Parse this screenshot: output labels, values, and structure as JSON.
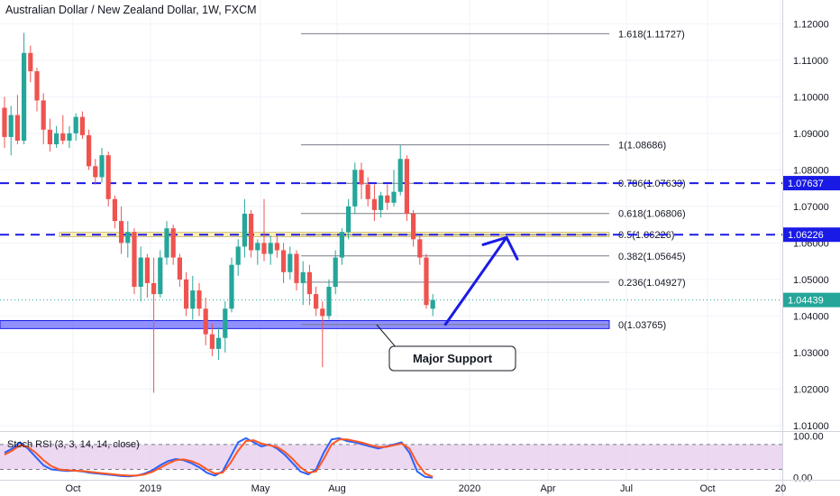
{
  "header": {
    "title": "Australian Dollar / New Zealand Dollar, 1W, FXCM"
  },
  "colors": {
    "up": "#26a69a",
    "down": "#ef5350",
    "fib_line": "#787b86",
    "level_line": "#1a1ae6",
    "support_fill": "#6b6bff",
    "zone_fill": "#ffeaa0",
    "current_price": "#26a69a",
    "stoch_k": "#2962ff",
    "stoch_d": "#ff5722",
    "stoch_band": "#e1bee7",
    "arrow": "#1a1ae6"
  },
  "chart_data": [
    {
      "type": "candlestick",
      "title": "Australian Dollar / New Zealand Dollar, 1W, FXCM",
      "price_axis": {
        "ticks": [
          "1.12000",
          "1.11000",
          "1.10000",
          "1.09000",
          "1.08000",
          "1.07000",
          "1.06000",
          "1.05000",
          "1.04000",
          "1.03000",
          "1.02000",
          "1.01000"
        ],
        "range": [
          1.0085,
          1.1265
        ]
      },
      "time_axis": {
        "ticks": [
          "Oct",
          "2019",
          "May",
          "Aug",
          "2020",
          "Apr",
          "Jul",
          "Oct",
          "20"
        ]
      },
      "candles": [
        {
          "o": 1.097,
          "h": 1.1,
          "l": 1.086,
          "c": 1.089
        },
        {
          "o": 1.089,
          "h": 1.0975,
          "l": 1.084,
          "c": 1.095
        },
        {
          "o": 1.095,
          "h": 1.1005,
          "l": 1.087,
          "c": 1.088
        },
        {
          "o": 1.088,
          "h": 1.1175,
          "l": 1.087,
          "c": 1.112
        },
        {
          "o": 1.112,
          "h": 1.114,
          "l": 1.104,
          "c": 1.107
        },
        {
          "o": 1.107,
          "h": 1.108,
          "l": 1.096,
          "c": 1.099
        },
        {
          "o": 1.099,
          "h": 1.101,
          "l": 1.087,
          "c": 1.091
        },
        {
          "o": 1.091,
          "h": 1.094,
          "l": 1.085,
          "c": 1.087
        },
        {
          "o": 1.087,
          "h": 1.092,
          "l": 1.086,
          "c": 1.09
        },
        {
          "o": 1.09,
          "h": 1.095,
          "l": 1.087,
          "c": 1.088
        },
        {
          "o": 1.088,
          "h": 1.092,
          "l": 1.086,
          "c": 1.09
        },
        {
          "o": 1.09,
          "h": 1.0955,
          "l": 1.088,
          "c": 1.0945
        },
        {
          "o": 1.0945,
          "h": 1.096,
          "l": 1.0885,
          "c": 1.0895
        },
        {
          "o": 1.0895,
          "h": 1.091,
          "l": 1.08,
          "c": 1.081
        },
        {
          "o": 1.081,
          "h": 1.083,
          "l": 1.076,
          "c": 1.078
        },
        {
          "o": 1.078,
          "h": 1.086,
          "l": 1.0765,
          "c": 1.084
        },
        {
          "o": 1.084,
          "h": 1.085,
          "l": 1.07,
          "c": 1.072
        },
        {
          "o": 1.072,
          "h": 1.073,
          "l": 1.064,
          "c": 1.066
        },
        {
          "o": 1.066,
          "h": 1.07,
          "l": 1.057,
          "c": 1.06
        },
        {
          "o": 1.06,
          "h": 1.066,
          "l": 1.056,
          "c": 1.063
        },
        {
          "o": 1.063,
          "h": 1.064,
          "l": 1.046,
          "c": 1.048
        },
        {
          "o": 1.048,
          "h": 1.059,
          "l": 1.044,
          "c": 1.056
        },
        {
          "o": 1.056,
          "h": 1.057,
          "l": 1.045,
          "c": 1.049
        },
        {
          "o": 1.049,
          "h": 1.056,
          "l": 1.019,
          "c": 1.046
        },
        {
          "o": 1.046,
          "h": 1.058,
          "l": 1.045,
          "c": 1.056
        },
        {
          "o": 1.056,
          "h": 1.066,
          "l": 1.054,
          "c": 1.064
        },
        {
          "o": 1.064,
          "h": 1.065,
          "l": 1.054,
          "c": 1.056
        },
        {
          "o": 1.056,
          "h": 1.057,
          "l": 1.048,
          "c": 1.05
        },
        {
          "o": 1.05,
          "h": 1.052,
          "l": 1.04,
          "c": 1.042
        },
        {
          "o": 1.042,
          "h": 1.051,
          "l": 1.039,
          "c": 1.047
        },
        {
          "o": 1.047,
          "h": 1.049,
          "l": 1.04,
          "c": 1.042
        },
        {
          "o": 1.042,
          "h": 1.045,
          "l": 1.032,
          "c": 1.035
        },
        {
          "o": 1.035,
          "h": 1.038,
          "l": 1.029,
          "c": 1.031
        },
        {
          "o": 1.031,
          "h": 1.037,
          "l": 1.028,
          "c": 1.034
        },
        {
          "o": 1.034,
          "h": 1.044,
          "l": 1.03,
          "c": 1.042
        },
        {
          "o": 1.042,
          "h": 1.056,
          "l": 1.041,
          "c": 1.054
        },
        {
          "o": 1.054,
          "h": 1.061,
          "l": 1.051,
          "c": 1.059
        },
        {
          "o": 1.059,
          "h": 1.072,
          "l": 1.056,
          "c": 1.068
        },
        {
          "o": 1.068,
          "h": 1.069,
          "l": 1.056,
          "c": 1.058
        },
        {
          "o": 1.058,
          "h": 1.061,
          "l": 1.054,
          "c": 1.06
        },
        {
          "o": 1.06,
          "h": 1.072,
          "l": 1.055,
          "c": 1.057
        },
        {
          "o": 1.057,
          "h": 1.062,
          "l": 1.054,
          "c": 1.06
        },
        {
          "o": 1.06,
          "h": 1.062,
          "l": 1.056,
          "c": 1.058
        },
        {
          "o": 1.058,
          "h": 1.06,
          "l": 1.049,
          "c": 1.052
        },
        {
          "o": 1.052,
          "h": 1.059,
          "l": 1.05,
          "c": 1.057
        },
        {
          "o": 1.057,
          "h": 1.058,
          "l": 1.047,
          "c": 1.049
        },
        {
          "o": 1.049,
          "h": 1.055,
          "l": 1.043,
          "c": 1.052
        },
        {
          "o": 1.052,
          "h": 1.054,
          "l": 1.043,
          "c": 1.046
        },
        {
          "o": 1.046,
          "h": 1.048,
          "l": 1.04,
          "c": 1.042
        },
        {
          "o": 1.042,
          "h": 1.044,
          "l": 1.026,
          "c": 1.04
        },
        {
          "o": 1.04,
          "h": 1.05,
          "l": 1.039,
          "c": 1.048
        },
        {
          "o": 1.048,
          "h": 1.058,
          "l": 1.046,
          "c": 1.056
        },
        {
          "o": 1.056,
          "h": 1.064,
          "l": 1.054,
          "c": 1.063
        },
        {
          "o": 1.063,
          "h": 1.072,
          "l": 1.061,
          "c": 1.07
        },
        {
          "o": 1.07,
          "h": 1.082,
          "l": 1.068,
          "c": 1.08
        },
        {
          "o": 1.08,
          "h": 1.082,
          "l": 1.072,
          "c": 1.076
        },
        {
          "o": 1.076,
          "h": 1.078,
          "l": 1.07,
          "c": 1.072
        },
        {
          "o": 1.072,
          "h": 1.076,
          "l": 1.066,
          "c": 1.069
        },
        {
          "o": 1.069,
          "h": 1.074,
          "l": 1.067,
          "c": 1.073
        },
        {
          "o": 1.073,
          "h": 1.076,
          "l": 1.069,
          "c": 1.071
        },
        {
          "o": 1.071,
          "h": 1.08,
          "l": 1.07,
          "c": 1.074
        },
        {
          "o": 1.074,
          "h": 1.0868,
          "l": 1.073,
          "c": 1.083
        },
        {
          "o": 1.083,
          "h": 1.084,
          "l": 1.066,
          "c": 1.068
        },
        {
          "o": 1.068,
          "h": 1.069,
          "l": 1.059,
          "c": 1.061
        },
        {
          "o": 1.061,
          "h": 1.062,
          "l": 1.054,
          "c": 1.056
        },
        {
          "o": 1.056,
          "h": 1.057,
          "l": 1.042,
          "c": 1.043
        },
        {
          "o": 1.042,
          "h": 1.046,
          "l": 1.04,
          "c": 1.0444
        }
      ],
      "fibonacci": [
        {
          "label": "1.618(1.11727)",
          "value": 1.11727
        },
        {
          "label": "1(1.08686)",
          "value": 1.08686
        },
        {
          "label": "0.786(1.07633)",
          "value": 1.07633
        },
        {
          "label": "0.618(1.06806)",
          "value": 1.06806
        },
        {
          "label": "0.5(1.06226)",
          "value": 1.06226
        },
        {
          "label": "0.382(1.05645)",
          "value": 1.05645
        },
        {
          "label": "0.236(1.04927)",
          "value": 1.04927
        },
        {
          "label": "0(1.03765)",
          "value": 1.03765
        }
      ],
      "horizontal_levels": [
        {
          "label": "1.07637",
          "value": 1.07637
        },
        {
          "label": "1.06226",
          "value": 1.06226
        }
      ],
      "support_zone": {
        "from": 1.0368,
        "to": 1.0385
      },
      "resistance_zone": {
        "from": 1.0617,
        "to": 1.0629
      },
      "current_price": {
        "label": "1.04439",
        "value": 1.04439
      },
      "annotation": {
        "text": "Major Support"
      }
    },
    {
      "type": "line",
      "title": "Stoch RSI (3, 3, 14, 14, close)",
      "axis": {
        "ticks": [
          "100.00",
          "0.00"
        ],
        "range": [
          -5,
          110
        ],
        "band": [
          20,
          80
        ]
      },
      "series": [
        {
          "key": "k",
          "values": [
            60,
            70,
            85,
            70,
            50,
            30,
            20,
            18,
            16,
            17,
            15,
            12,
            10,
            8,
            6,
            4,
            3,
            5,
            10,
            18,
            30,
            40,
            45,
            42,
            35,
            25,
            12,
            5,
            15,
            50,
            85,
            95,
            85,
            75,
            80,
            70,
            55,
            35,
            15,
            8,
            20,
            60,
            92,
            95,
            88,
            85,
            80,
            75,
            70,
            75,
            80,
            85,
            60,
            15,
            2,
            0
          ]
        },
        {
          "key": "d",
          "values": [
            55,
            65,
            78,
            74,
            60,
            42,
            28,
            20,
            18,
            17,
            16,
            14,
            12,
            10,
            8,
            6,
            5,
            5,
            8,
            14,
            24,
            34,
            42,
            44,
            40,
            32,
            20,
            10,
            12,
            35,
            65,
            88,
            90,
            82,
            78,
            74,
            62,
            45,
            25,
            12,
            15,
            45,
            80,
            92,
            92,
            88,
            84,
            78,
            74,
            74,
            78,
            82,
            70,
            35,
            10,
            2
          ]
        }
      ]
    }
  ]
}
